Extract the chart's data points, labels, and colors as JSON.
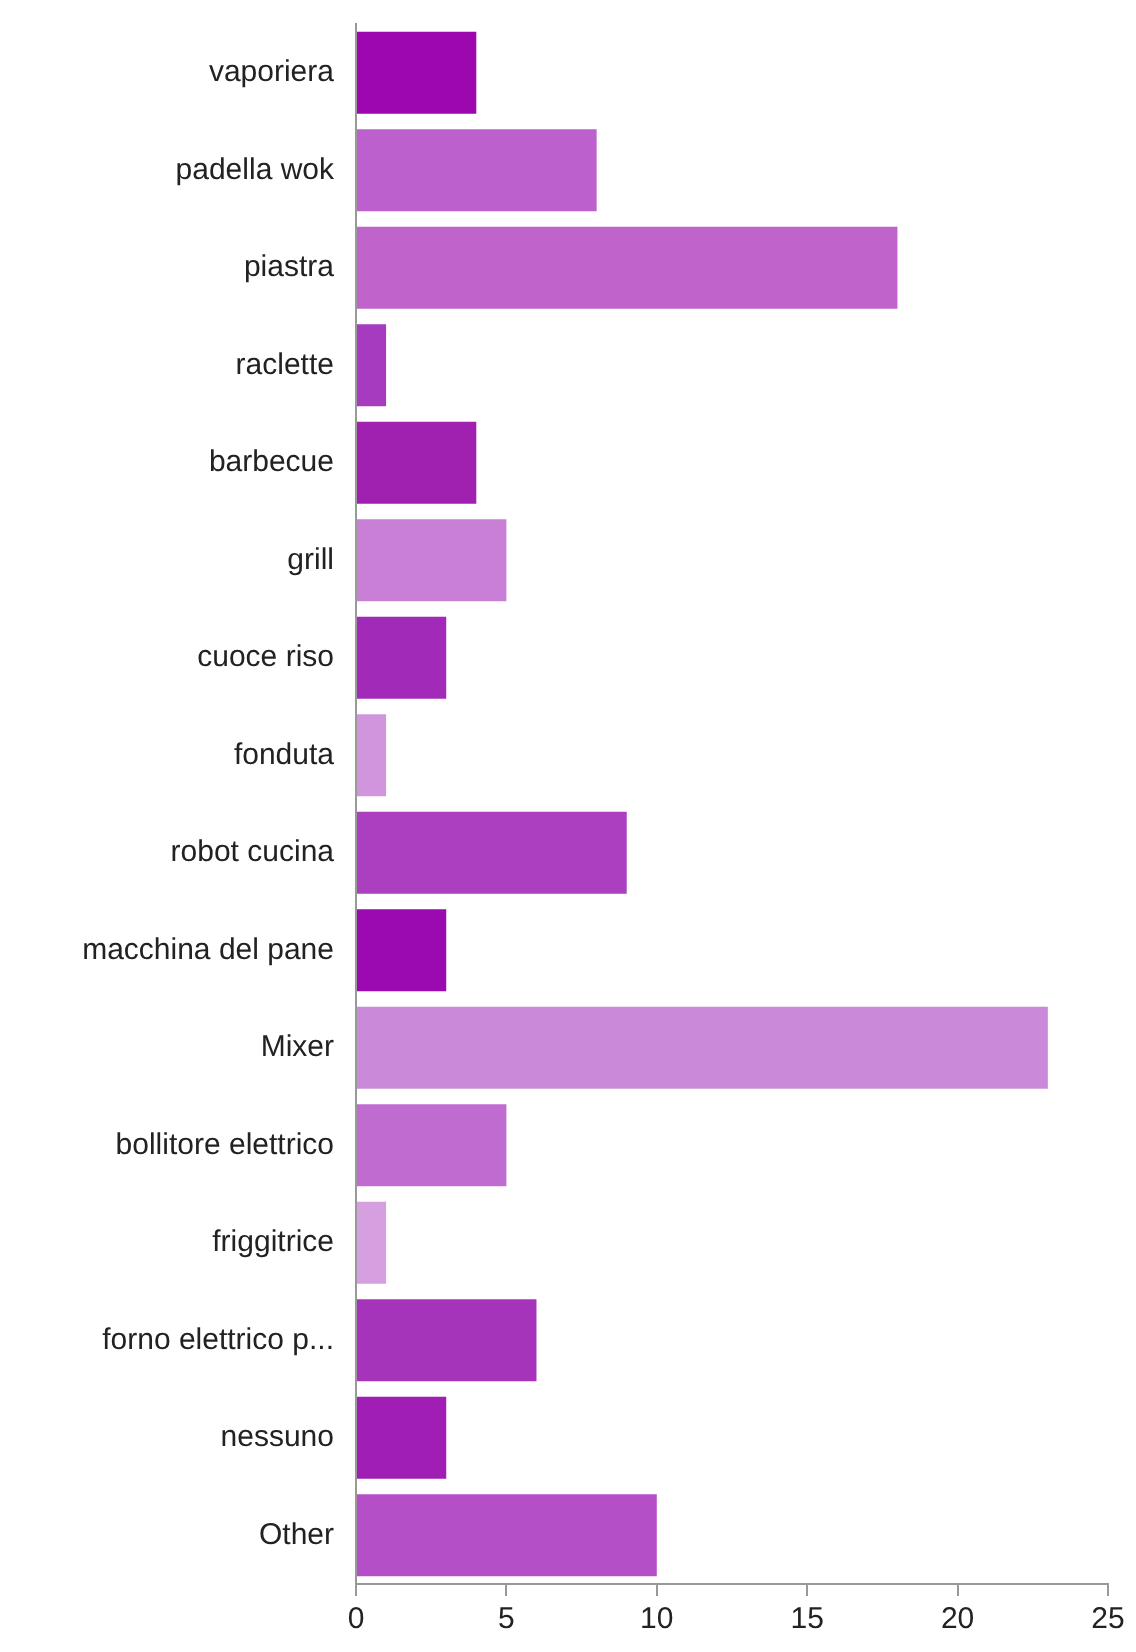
{
  "chart_data": {
    "type": "bar",
    "orientation": "horizontal",
    "categories": [
      "vaporiera",
      "padella wok",
      "piastra",
      "raclette",
      "barbecue",
      "grill",
      "cuoce riso",
      "fonduta",
      "robot cucina",
      "macchina del pane",
      "Mixer",
      "bollitore elettrico",
      "friggitrice",
      "forno elettrico p...",
      "nessuno",
      "Other"
    ],
    "values": [
      4,
      8,
      18,
      1,
      4,
      5,
      3,
      1,
      9,
      3,
      23,
      5,
      1,
      6,
      3,
      10
    ],
    "colors": [
      "#9c07b0",
      "#bb60cc",
      "#c064cc",
      "#a63bbf",
      "#a020b0",
      "#c97fd6",
      "#a22ab8",
      "#d095dc",
      "#ab3fc0",
      "#9a0ab0",
      "#cb89d9",
      "#c06bd0",
      "#d59fe0",
      "#a534bb",
      "#a01eb5",
      "#b54fc8"
    ],
    "xlim": [
      0,
      25
    ],
    "xticks": [
      0,
      5,
      10,
      15,
      20,
      25
    ],
    "grid": false
  }
}
